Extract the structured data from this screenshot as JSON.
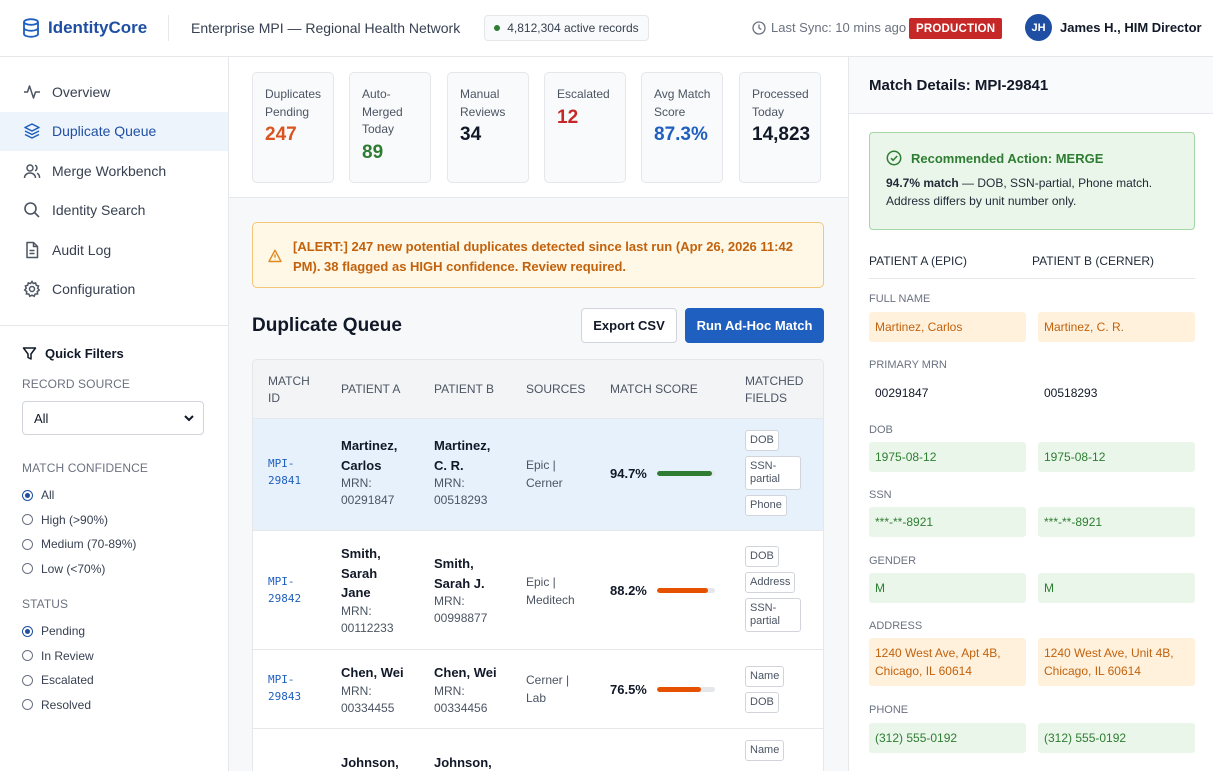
{
  "app": {
    "name": "IdentityCore",
    "title": "Enterprise MPI — Regional Health Network",
    "active_records": "4,812,304 active records",
    "last_sync": "Last Sync: 10 mins ago",
    "environment": "PRODUCTION",
    "user": {
      "initials": "JH",
      "name": "James H., HIM Director"
    }
  },
  "sidebar": {
    "items": [
      {
        "label": "Overview",
        "icon": "activity-icon"
      },
      {
        "label": "Duplicate Queue",
        "icon": "layers-icon",
        "active": true
      },
      {
        "label": "Merge Workbench",
        "icon": "users-icon"
      },
      {
        "label": "Identity Search",
        "icon": "search-icon"
      },
      {
        "label": "Audit Log",
        "icon": "document-icon"
      },
      {
        "label": "Configuration",
        "icon": "gear-icon"
      }
    ],
    "filters": {
      "title": "Quick Filters",
      "record_source": {
        "label": "RECORD SOURCE",
        "value": "All"
      },
      "match_confidence": {
        "label": "MATCH CONFIDENCE",
        "options": [
          "All",
          "High (>90%)",
          "Medium (70-89%)",
          "Low (<70%)"
        ],
        "selected": 0
      },
      "status": {
        "label": "STATUS",
        "options": [
          "Pending",
          "In Review",
          "Escalated",
          "Resolved"
        ],
        "selected": 0
      }
    }
  },
  "stats": [
    {
      "label": "Duplicates Pending",
      "value": "247",
      "color": "#d9541e"
    },
    {
      "label": "Auto-Merged Today",
      "value": "89",
      "color": "#2e7d32"
    },
    {
      "label": "Manual Reviews",
      "value": "34",
      "color": "#111827"
    },
    {
      "label": "Escalated",
      "value": "12",
      "color": "#c62828"
    },
    {
      "label": "Avg Match Score",
      "value": "87.3%",
      "color": "#1f5fbf"
    },
    {
      "label": "Processed Today",
      "value": "14,823",
      "color": "#111827"
    }
  ],
  "alert": {
    "text": "[ALERT:] 247 new potential duplicates detected since last run (Apr 26, 2026 11:42 PM). 38 flagged as HIGH confidence. Review required."
  },
  "queue": {
    "title": "Duplicate Queue",
    "export_label": "Export CSV",
    "run_label": "Run Ad-Hoc Match",
    "columns": [
      "MATCH ID",
      "PATIENT A",
      "PATIENT B",
      "SOURCES",
      "MATCH SCORE",
      "MATCHED FIELDS"
    ],
    "rows": [
      {
        "id": "MPI-29841",
        "a_name": "Martinez, Carlos",
        "a_mrn": "MRN: 00291847",
        "b_name": "Martinez, C. R.",
        "b_mrn": "MRN: 00518293",
        "sources": "Epic | Cerner",
        "score_label": "94.7%",
        "score": 0.947,
        "fields": [
          "DOB",
          "SSN-partial",
          "Phone"
        ],
        "color": "#2e7d32"
      },
      {
        "id": "MPI-29842",
        "a_name": "Smith, Sarah Jane",
        "a_mrn": "MRN: 00112233",
        "b_name": "Smith, Sarah J.",
        "b_mrn": "MRN: 00998877",
        "sources": "Epic | Meditech",
        "score_label": "88.2%",
        "score": 0.882,
        "fields": [
          "DOB",
          "Address",
          "SSN-partial"
        ],
        "color": "#e65100"
      },
      {
        "id": "MPI-29843",
        "a_name": "Chen, Wei",
        "a_mrn": "MRN: 00334455",
        "b_name": "Chen, Wei",
        "b_mrn": "MRN: 00334456",
        "sources": "Cerner | Lab",
        "score_label": "76.5%",
        "score": 0.765,
        "fields": [
          "Name",
          "DOB"
        ],
        "color": "#e65100"
      },
      {
        "id": "",
        "a_name": "Johnson,",
        "a_mrn": "",
        "b_name": "Johnson,",
        "b_mrn": "",
        "sources": "",
        "score_label": "",
        "score": 0,
        "fields": [
          "Name"
        ],
        "color": "#e65100"
      }
    ]
  },
  "details": {
    "title": "Match Details: MPI-29841",
    "rec_title": "Recommended Action: MERGE",
    "rec_strong": "94.7% match",
    "rec_text": " — DOB, SSN-partial, Phone match. Address differs by unit number only.",
    "col_a": "PATIENT A (EPIC)",
    "col_b": "PATIENT B (CERNER)",
    "fields": [
      {
        "label": "FULL NAME",
        "a": "Martinez, Carlos",
        "b": "Martinez, C. R.",
        "state": "diff"
      },
      {
        "label": "PRIMARY MRN",
        "a": "00291847",
        "b": "00518293",
        "state": "plain"
      },
      {
        "label": "DOB",
        "a": "1975-08-12",
        "b": "1975-08-12",
        "state": "match"
      },
      {
        "label": "SSN",
        "a": "***-**-8921",
        "b": "***-**-8921",
        "state": "match"
      },
      {
        "label": "GENDER",
        "a": "M",
        "b": "M",
        "state": "match"
      },
      {
        "label": "ADDRESS",
        "a": "1240 West Ave, Apt 4B, Chicago, IL 60614",
        "b": "1240 West Ave, Unit 4B, Chicago, IL 60614",
        "state": "diff"
      },
      {
        "label": "PHONE",
        "a": "(312) 555-0192",
        "b": "(312) 555-0192",
        "state": "match"
      }
    ]
  }
}
